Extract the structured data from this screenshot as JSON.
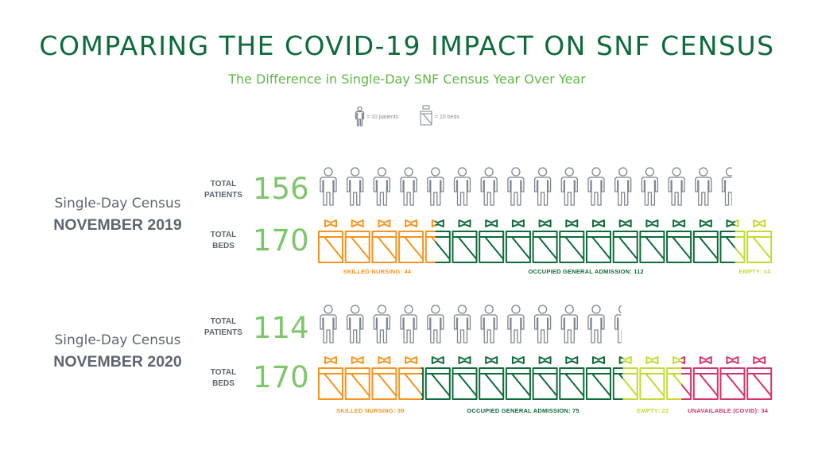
{
  "title": "COMPARING THE COVID-19 IMPACT ON SNF CENSUS",
  "subtitle": "The Difference in Single-Day SNF Census Year Over Year",
  "legend": {
    "patient_label": "= 10 patients",
    "bed_label": "= 10 beds"
  },
  "colors": {
    "title": "#0e6b3a",
    "subtitle": "#5fb845",
    "big_number": "#7ec66b",
    "skilled_nursing": "#f7941d",
    "occupied_general": "#0e6b3a",
    "empty": "#c6d930",
    "unavailable": "#d6336c",
    "person": "#7d858d"
  },
  "chart_data": [
    {
      "type": "bar",
      "census_label": "Single-Day Census",
      "date": "NOVEMBER 2019",
      "patients_label": "TOTAL PATIENTS",
      "total_patients": 156,
      "beds_label": "TOTAL BEDS",
      "total_beds": 170,
      "unit_patients": 10,
      "unit_beds": 10,
      "bed_segments": [
        {
          "label": "SKILLED NURSING: 44",
          "value": 44,
          "color": "#f7941d"
        },
        {
          "label": "OCCUPIED GENERAL ADMISSION: 112",
          "value": 112,
          "color": "#0e6b3a"
        },
        {
          "label": "EMPTY: 14",
          "value": 14,
          "color": "#c6d930"
        }
      ]
    },
    {
      "type": "bar",
      "census_label": "Single-Day Census",
      "date": "NOVEMBER 2020",
      "patients_label": "TOTAL PATIENTS",
      "total_patients": 114,
      "beds_label": "TOTAL BEDS",
      "total_beds": 170,
      "unit_patients": 10,
      "unit_beds": 10,
      "bed_segments": [
        {
          "label": "SKILLED NURSING: 39",
          "value": 39,
          "color": "#f7941d"
        },
        {
          "label": "OCCUPIED GENERAL ADMISSION: 75",
          "value": 75,
          "color": "#0e6b3a"
        },
        {
          "label": "EMPTY: 22",
          "value": 22,
          "color": "#c6d930"
        },
        {
          "label": "UNAVAILABLE (COVID): 34",
          "value": 34,
          "color": "#d6336c"
        }
      ]
    }
  ]
}
